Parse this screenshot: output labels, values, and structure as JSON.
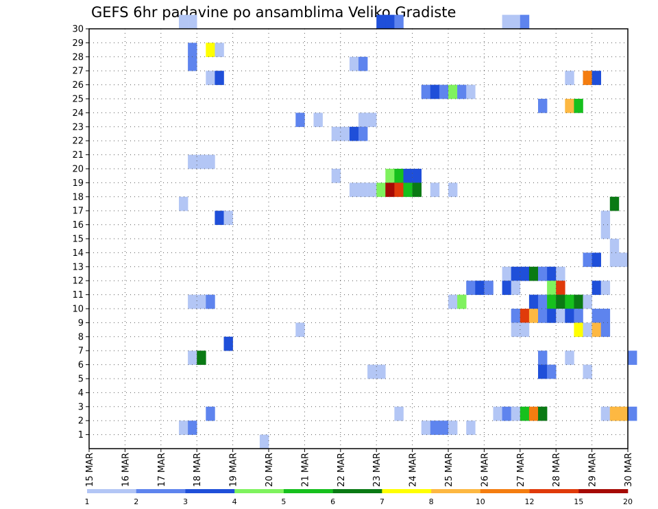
{
  "chart_data": {
    "type": "heatmap",
    "title": "GEFS 6hr padavine po ansamblima Veliko Gradiste",
    "y_ticks": [
      "1",
      "2",
      "3",
      "4",
      "5",
      "6",
      "7",
      "8",
      "9",
      "10",
      "11",
      "12",
      "13",
      "14",
      "15",
      "16",
      "17",
      "18",
      "19",
      "20",
      "21",
      "22",
      "23",
      "24",
      "25",
      "26",
      "27",
      "28",
      "29",
      "30"
    ],
    "x_ticks": [
      "15 MAR",
      "16 MAR",
      "17 MAR",
      "18 MAR",
      "19 MAR",
      "20 MAR",
      "21 MAR",
      "22 MAR",
      "23 MAR",
      "24 MAR",
      "25 MAR",
      "26 MAR",
      "27 MAR",
      "28 MAR",
      "29 MAR",
      "30 MAR"
    ],
    "x_start": "15 MAR",
    "y_range": [
      0,
      30
    ],
    "grid": true,
    "color_scale": {
      "labels": [
        "1",
        "2",
        "3",
        "4",
        "5",
        "6",
        "7",
        "8",
        "10",
        "12",
        "15",
        "20"
      ],
      "colors": [
        "#b3c6f5",
        "#5e84ee",
        "#1f4fd9",
        "#7ff25e",
        "#16c01d",
        "#0a7a14",
        "#ffff00",
        "#fdb842",
        "#f47d10",
        "#e03a0a",
        "#a60a05"
      ]
    },
    "cells": [
      {
        "m": 30,
        "t": [
          10,
          11
        ],
        "c": 1
      },
      {
        "m": 30,
        "t": [
          32,
          33
        ],
        "c": 3
      },
      {
        "m": 30,
        "t": [
          34
        ],
        "c": 2
      },
      {
        "m": 30,
        "t": [
          46,
          47
        ],
        "c": 1
      },
      {
        "m": 30,
        "t": [
          48
        ],
        "c": 2
      },
      {
        "m": 28,
        "t": [
          11
        ],
        "c": 2
      },
      {
        "m": 28,
        "t": [
          13
        ],
        "c": 7
      },
      {
        "m": 28,
        "t": [
          14
        ],
        "c": 1
      },
      {
        "m": 27,
        "t": [
          11
        ],
        "c": 2
      },
      {
        "m": 27,
        "t": [
          29
        ],
        "c": 1
      },
      {
        "m": 27,
        "t": [
          30
        ],
        "c": 2
      },
      {
        "m": 26,
        "t": [
          13
        ],
        "c": 1
      },
      {
        "m": 26,
        "t": [
          14
        ],
        "c": 3
      },
      {
        "m": 26,
        "t": [
          53
        ],
        "c": 1
      },
      {
        "m": 26,
        "t": [
          55
        ],
        "c": 9
      },
      {
        "m": 26,
        "t": [
          56
        ],
        "c": 3
      },
      {
        "m": 25,
        "t": [
          37
        ],
        "c": 2
      },
      {
        "m": 25,
        "t": [
          38
        ],
        "c": 3
      },
      {
        "m": 25,
        "t": [
          39
        ],
        "c": 2
      },
      {
        "m": 25,
        "t": [
          40
        ],
        "c": 4
      },
      {
        "m": 25,
        "t": [
          41
        ],
        "c": 2
      },
      {
        "m": 25,
        "t": [
          42
        ],
        "c": 1
      },
      {
        "m": 24,
        "t": [
          50
        ],
        "c": 2
      },
      {
        "m": 24,
        "t": [
          53
        ],
        "c": 8
      },
      {
        "m": 24,
        "t": [
          54
        ],
        "c": 5
      },
      {
        "m": 23,
        "t": [
          23
        ],
        "c": 2
      },
      {
        "m": 23,
        "t": [
          25
        ],
        "c": 1
      },
      {
        "m": 23,
        "t": [
          30,
          31
        ],
        "c": 1
      },
      {
        "m": 22,
        "t": [
          27,
          28
        ],
        "c": 1
      },
      {
        "m": 22,
        "t": [
          29
        ],
        "c": 3
      },
      {
        "m": 22,
        "t": [
          30
        ],
        "c": 2
      },
      {
        "m": 20,
        "t": [
          11,
          12,
          13
        ],
        "c": 1
      },
      {
        "m": 19,
        "t": [
          27
        ],
        "c": 1
      },
      {
        "m": 19,
        "t": [
          33
        ],
        "c": 4
      },
      {
        "m": 19,
        "t": [
          34
        ],
        "c": 5
      },
      {
        "m": 19,
        "t": [
          35,
          36
        ],
        "c": 3
      },
      {
        "m": 18,
        "t": [
          29,
          30,
          31
        ],
        "c": 1
      },
      {
        "m": 18,
        "t": [
          32
        ],
        "c": 4
      },
      {
        "m": 18,
        "t": [
          33
        ],
        "c": 11
      },
      {
        "m": 18,
        "t": [
          34
        ],
        "c": 10
      },
      {
        "m": 18,
        "t": [
          35
        ],
        "c": 5
      },
      {
        "m": 18,
        "t": [
          36
        ],
        "c": 6
      },
      {
        "m": 18,
        "t": [
          38
        ],
        "c": 1
      },
      {
        "m": 18,
        "t": [
          40
        ],
        "c": 1
      },
      {
        "m": 17,
        "t": [
          10
        ],
        "c": 1
      },
      {
        "m": 17,
        "t": [
          58
        ],
        "c": 6
      },
      {
        "m": 16,
        "t": [
          14
        ],
        "c": 3
      },
      {
        "m": 16,
        "t": [
          15
        ],
        "c": 1
      },
      {
        "m": 16,
        "t": [
          57
        ],
        "c": 1
      },
      {
        "m": 15,
        "t": [
          57
        ],
        "c": 1
      },
      {
        "m": 14,
        "t": [
          58
        ],
        "c": 1
      },
      {
        "m": 13,
        "t": [
          55
        ],
        "c": 2
      },
      {
        "m": 13,
        "t": [
          56
        ],
        "c": 3
      },
      {
        "m": 13,
        "t": [
          58,
          59
        ],
        "c": 1
      },
      {
        "m": 12,
        "t": [
          46
        ],
        "c": 1
      },
      {
        "m": 12,
        "t": [
          47,
          48
        ],
        "c": 3
      },
      {
        "m": 12,
        "t": [
          49
        ],
        "c": 6
      },
      {
        "m": 12,
        "t": [
          50
        ],
        "c": 2
      },
      {
        "m": 12,
        "t": [
          51
        ],
        "c": 3
      },
      {
        "m": 12,
        "t": [
          52
        ],
        "c": 1
      },
      {
        "m": 11,
        "t": [
          42
        ],
        "c": 2
      },
      {
        "m": 11,
        "t": [
          43
        ],
        "c": 3
      },
      {
        "m": 11,
        "t": [
          44
        ],
        "c": 2
      },
      {
        "m": 11,
        "t": [
          46
        ],
        "c": 3
      },
      {
        "m": 11,
        "t": [
          47
        ],
        "c": 1
      },
      {
        "m": 11,
        "t": [
          51
        ],
        "c": 4
      },
      {
        "m": 11,
        "t": [
          52
        ],
        "c": 10
      },
      {
        "m": 11,
        "t": [
          56
        ],
        "c": 3
      },
      {
        "m": 11,
        "t": [
          57
        ],
        "c": 1
      },
      {
        "m": 10,
        "t": [
          11,
          12
        ],
        "c": 1
      },
      {
        "m": 10,
        "t": [
          13
        ],
        "c": 2
      },
      {
        "m": 10,
        "t": [
          40
        ],
        "c": 1
      },
      {
        "m": 10,
        "t": [
          41
        ],
        "c": 4
      },
      {
        "m": 10,
        "t": [
          49
        ],
        "c": 3
      },
      {
        "m": 10,
        "t": [
          50
        ],
        "c": 2
      },
      {
        "m": 10,
        "t": [
          51
        ],
        "c": 5
      },
      {
        "m": 10,
        "t": [
          52
        ],
        "c": 6
      },
      {
        "m": 10,
        "t": [
          53
        ],
        "c": 5
      },
      {
        "m": 10,
        "t": [
          54
        ],
        "c": 6
      },
      {
        "m": 10,
        "t": [
          55
        ],
        "c": 1
      },
      {
        "m": 9,
        "t": [
          47
        ],
        "c": 2
      },
      {
        "m": 9,
        "t": [
          48
        ],
        "c": 10
      },
      {
        "m": 9,
        "t": [
          49
        ],
        "c": 8
      },
      {
        "m": 9,
        "t": [
          50
        ],
        "c": 2
      },
      {
        "m": 9,
        "t": [
          51
        ],
        "c": 3
      },
      {
        "m": 9,
        "t": [
          52
        ],
        "c": 1
      },
      {
        "m": 9,
        "t": [
          53
        ],
        "c": 3
      },
      {
        "m": 9,
        "t": [
          54
        ],
        "c": 2
      },
      {
        "m": 9,
        "t": [
          56,
          57
        ],
        "c": 2
      },
      {
        "m": 8,
        "t": [
          23
        ],
        "c": 1
      },
      {
        "m": 8,
        "t": [
          47,
          48
        ],
        "c": 1
      },
      {
        "m": 8,
        "t": [
          54
        ],
        "c": 7
      },
      {
        "m": 8,
        "t": [
          55
        ],
        "c": 1
      },
      {
        "m": 8,
        "t": [
          56
        ],
        "c": 8
      },
      {
        "m": 8,
        "t": [
          57
        ],
        "c": 2
      },
      {
        "m": 7,
        "t": [
          15
        ],
        "c": 3
      },
      {
        "m": 6,
        "t": [
          11
        ],
        "c": 1
      },
      {
        "m": 6,
        "t": [
          12
        ],
        "c": 6
      },
      {
        "m": 6,
        "t": [
          50
        ],
        "c": 2
      },
      {
        "m": 6,
        "t": [
          53
        ],
        "c": 1
      },
      {
        "m": 6,
        "t": [
          60
        ],
        "c": 2
      },
      {
        "m": 5,
        "t": [
          31,
          32
        ],
        "c": 1
      },
      {
        "m": 5,
        "t": [
          50
        ],
        "c": 3
      },
      {
        "m": 5,
        "t": [
          51
        ],
        "c": 2
      },
      {
        "m": 5,
        "t": [
          55
        ],
        "c": 1
      },
      {
        "m": 2,
        "t": [
          13
        ],
        "c": 2
      },
      {
        "m": 2,
        "t": [
          34
        ],
        "c": 1
      },
      {
        "m": 2,
        "t": [
          45
        ],
        "c": 1
      },
      {
        "m": 2,
        "t": [
          46
        ],
        "c": 2
      },
      {
        "m": 2,
        "t": [
          47
        ],
        "c": 1
      },
      {
        "m": 2,
        "t": [
          48
        ],
        "c": 5
      },
      {
        "m": 2,
        "t": [
          49
        ],
        "c": 9
      },
      {
        "m": 2,
        "t": [
          50
        ],
        "c": 6
      },
      {
        "m": 2,
        "t": [
          57
        ],
        "c": 1
      },
      {
        "m": 2,
        "t": [
          58,
          59
        ],
        "c": 8
      },
      {
        "m": 2,
        "t": [
          60
        ],
        "c": 2
      },
      {
        "m": 1,
        "t": [
          10
        ],
        "c": 1
      },
      {
        "m": 1,
        "t": [
          11
        ],
        "c": 2
      },
      {
        "m": 1,
        "t": [
          37
        ],
        "c": 1
      },
      {
        "m": 1,
        "t": [
          38,
          39
        ],
        "c": 2
      },
      {
        "m": 1,
        "t": [
          40
        ],
        "c": 1
      },
      {
        "m": 1,
        "t": [
          42
        ],
        "c": 1
      },
      {
        "m": 0,
        "t": [
          19
        ],
        "c": 1
      }
    ]
  }
}
